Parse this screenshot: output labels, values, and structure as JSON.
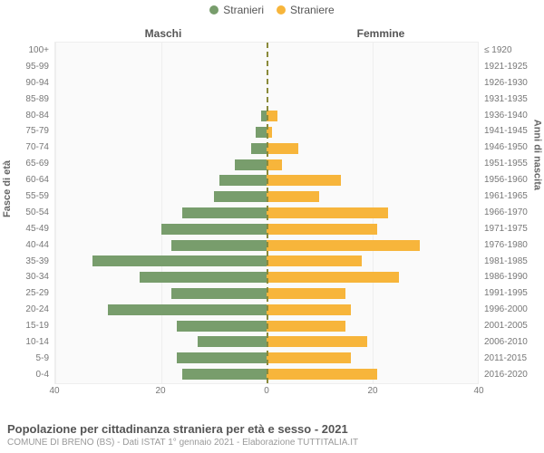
{
  "legend": {
    "male": {
      "label": "Stranieri",
      "color": "#789d6c"
    },
    "female": {
      "label": "Straniere",
      "color": "#f7b53b"
    }
  },
  "column_headers": {
    "left": "Maschi",
    "right": "Femmine"
  },
  "y_axis_left": {
    "title": "Fasce di età"
  },
  "y_axis_right": {
    "title": "Anni di nascita"
  },
  "chart": {
    "type": "population-pyramid",
    "xlim": 40,
    "xticks": [
      40,
      20,
      0,
      20,
      40
    ],
    "background_color": "#fafafa",
    "grid_color": "#eeeeee",
    "center_line_color": "#8a8a3a",
    "bar_color_left": "#789d6c",
    "bar_color_right": "#f7b53b",
    "rows": [
      {
        "age": "100+",
        "birth": "≤ 1920",
        "m": 0,
        "f": 0
      },
      {
        "age": "95-99",
        "birth": "1921-1925",
        "m": 0,
        "f": 0
      },
      {
        "age": "90-94",
        "birth": "1926-1930",
        "m": 0,
        "f": 0
      },
      {
        "age": "85-89",
        "birth": "1931-1935",
        "m": 0,
        "f": 0
      },
      {
        "age": "80-84",
        "birth": "1936-1940",
        "m": 1,
        "f": 2
      },
      {
        "age": "75-79",
        "birth": "1941-1945",
        "m": 2,
        "f": 1
      },
      {
        "age": "70-74",
        "birth": "1946-1950",
        "m": 3,
        "f": 6
      },
      {
        "age": "65-69",
        "birth": "1951-1955",
        "m": 6,
        "f": 3
      },
      {
        "age": "60-64",
        "birth": "1956-1960",
        "m": 9,
        "f": 14
      },
      {
        "age": "55-59",
        "birth": "1961-1965",
        "m": 10,
        "f": 10
      },
      {
        "age": "50-54",
        "birth": "1966-1970",
        "m": 16,
        "f": 23
      },
      {
        "age": "45-49",
        "birth": "1971-1975",
        "m": 20,
        "f": 21
      },
      {
        "age": "40-44",
        "birth": "1976-1980",
        "m": 18,
        "f": 29
      },
      {
        "age": "35-39",
        "birth": "1981-1985",
        "m": 33,
        "f": 18
      },
      {
        "age": "30-34",
        "birth": "1986-1990",
        "m": 24,
        "f": 25
      },
      {
        "age": "25-29",
        "birth": "1991-1995",
        "m": 18,
        "f": 15
      },
      {
        "age": "20-24",
        "birth": "1996-2000",
        "m": 30,
        "f": 16
      },
      {
        "age": "15-19",
        "birth": "2001-2005",
        "m": 17,
        "f": 15
      },
      {
        "age": "10-14",
        "birth": "2006-2010",
        "m": 13,
        "f": 19
      },
      {
        "age": "5-9",
        "birth": "2011-2015",
        "m": 17,
        "f": 16
      },
      {
        "age": "0-4",
        "birth": "2016-2020",
        "m": 16,
        "f": 21
      }
    ]
  },
  "footer": {
    "title": "Popolazione per cittadinanza straniera per età e sesso - 2021",
    "subtitle": "COMUNE DI BRENO (BS) - Dati ISTAT 1° gennaio 2021 - Elaborazione TUTTITALIA.IT"
  }
}
